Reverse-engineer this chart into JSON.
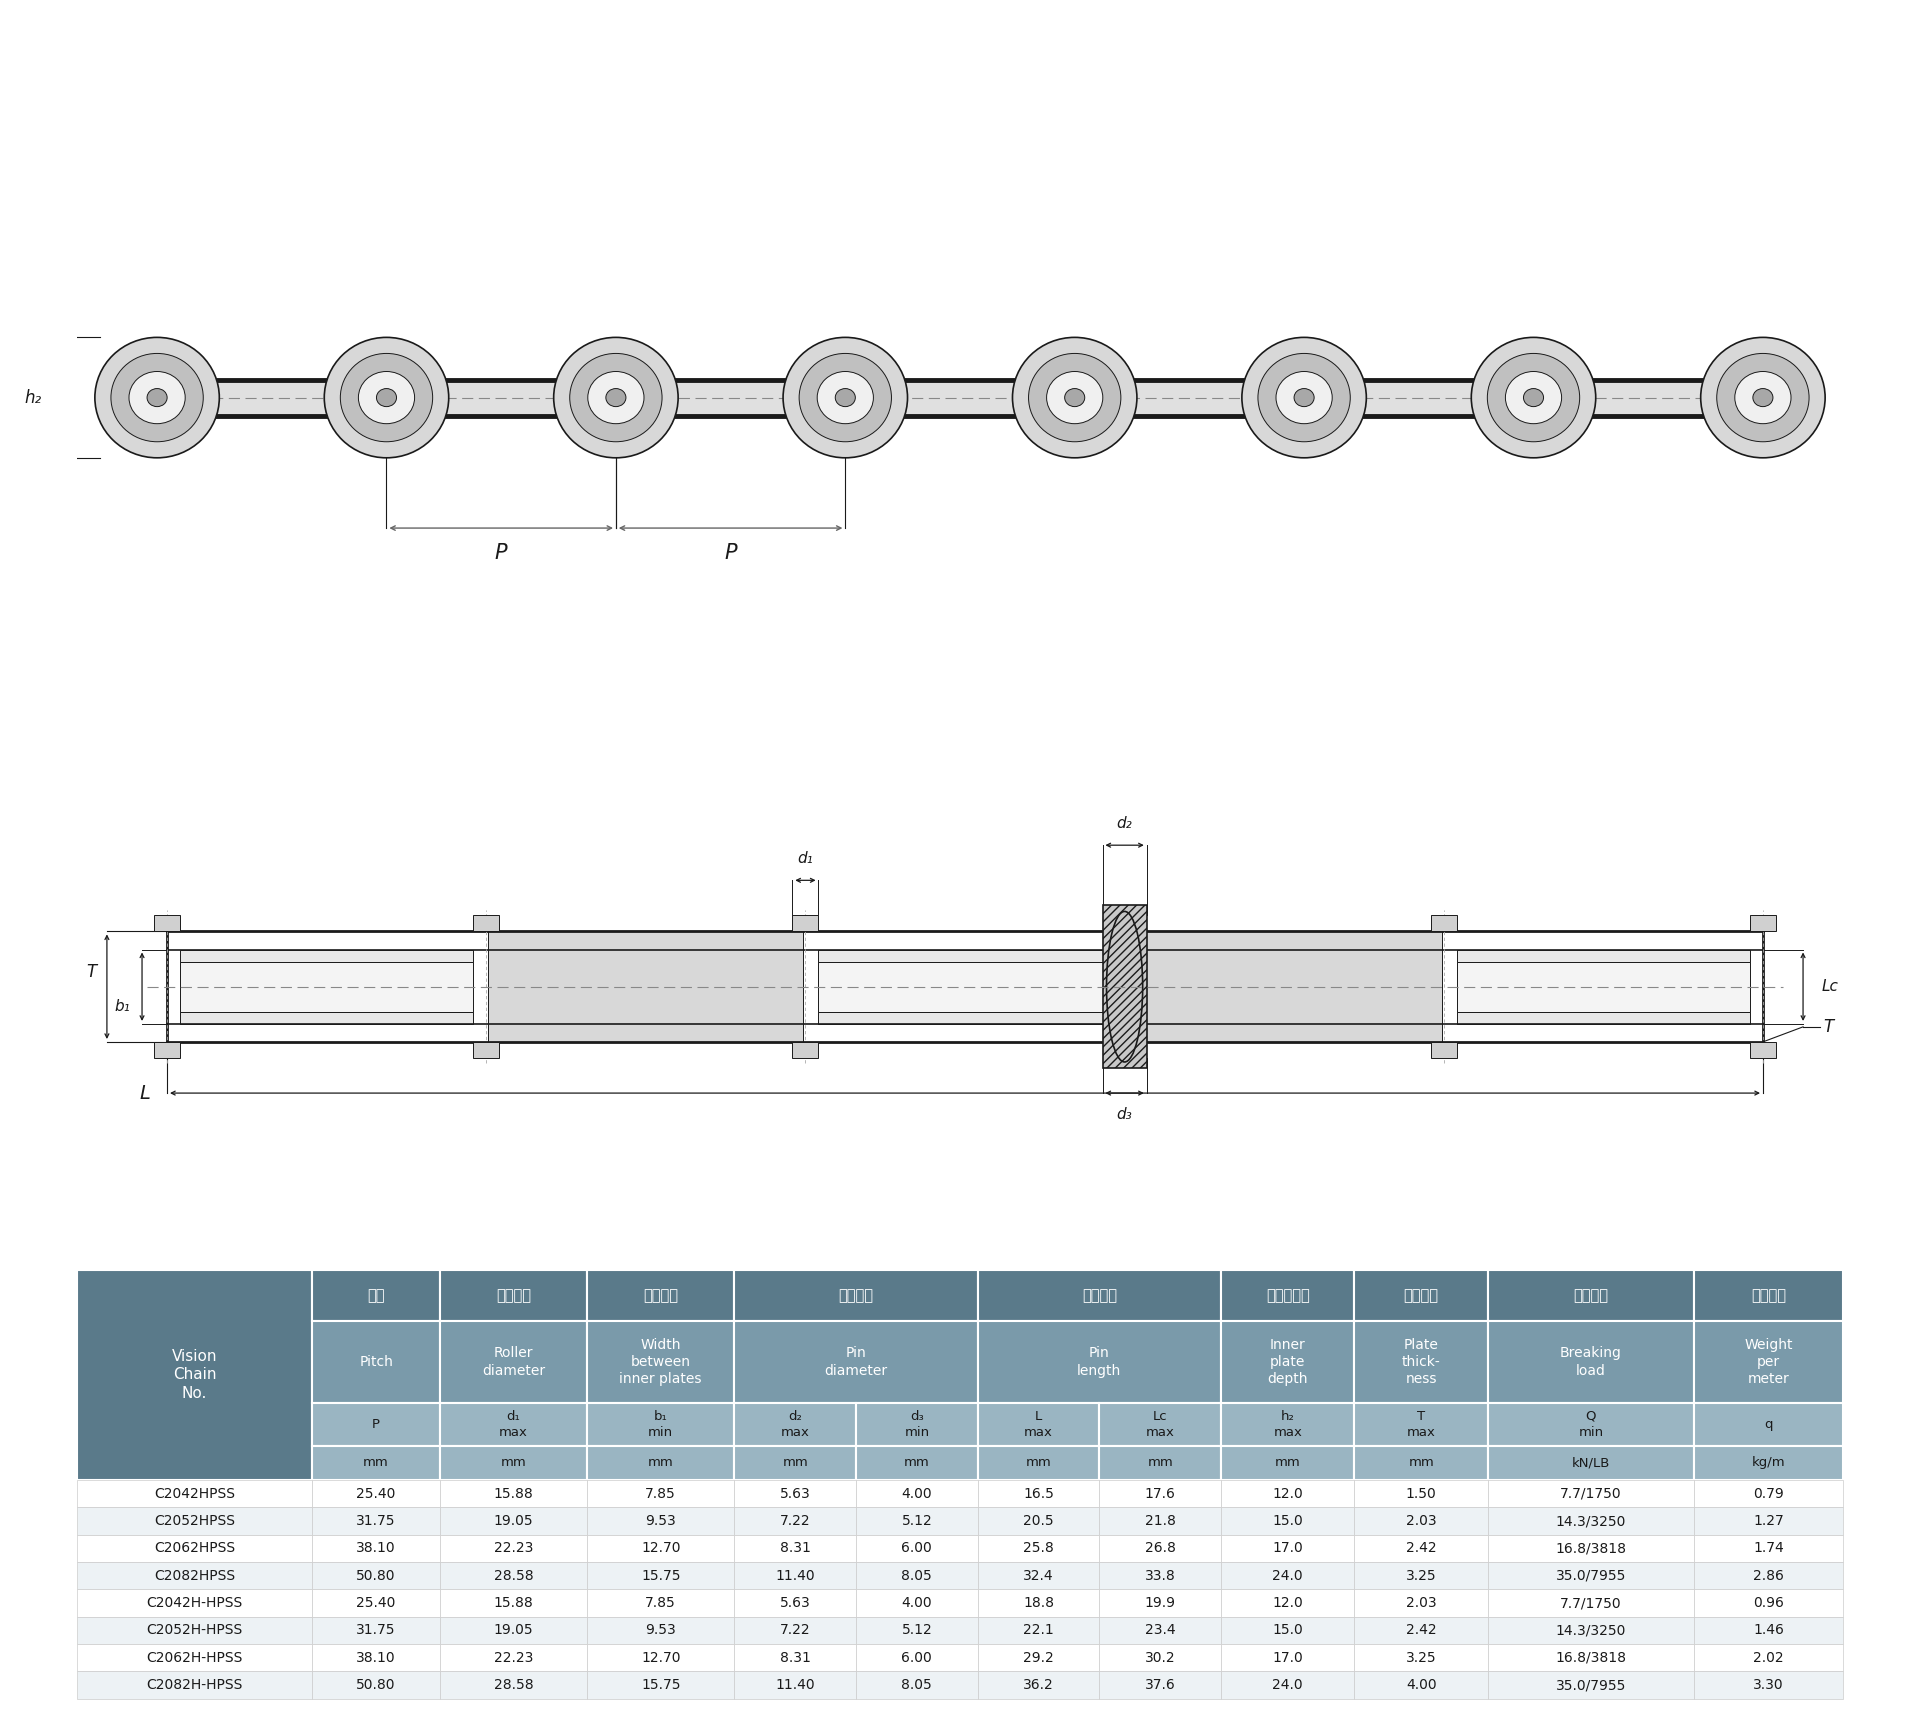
{
  "bg_color": "#ffffff",
  "table_header_bg": "#5a7a8a",
  "table_subheader_bg": "#7a9aaa",
  "table_sym_bg": "#9ab5c2",
  "table_unit_bg": "#9ab5c2",
  "table_row_bg_odd": "#ffffff",
  "table_row_bg_even": "#edf2f5",
  "table_text_white": "#ffffff",
  "table_text_dark": "#1a1a1a",
  "rows": [
    [
      "C2042HPSS",
      "25.40",
      "15.88",
      "7.85",
      "5.63",
      "4.00",
      "16.5",
      "17.6",
      "12.0",
      "1.50",
      "7.7/1750",
      "0.79"
    ],
    [
      "C2052HPSS",
      "31.75",
      "19.05",
      "9.53",
      "7.22",
      "5.12",
      "20.5",
      "21.8",
      "15.0",
      "2.03",
      "14.3/3250",
      "1.27"
    ],
    [
      "C2062HPSS",
      "38.10",
      "22.23",
      "12.70",
      "8.31",
      "6.00",
      "25.8",
      "26.8",
      "17.0",
      "2.42",
      "16.8/3818",
      "1.74"
    ],
    [
      "C2082HPSS",
      "50.80",
      "28.58",
      "15.75",
      "11.40",
      "8.05",
      "32.4",
      "33.8",
      "24.0",
      "3.25",
      "35.0/7955",
      "2.86"
    ],
    [
      "C2042H-HPSS",
      "25.40",
      "15.88",
      "7.85",
      "5.63",
      "4.00",
      "18.8",
      "19.9",
      "12.0",
      "2.03",
      "7.7/1750",
      "0.96"
    ],
    [
      "C2052H-HPSS",
      "31.75",
      "19.05",
      "9.53",
      "7.22",
      "5.12",
      "22.1",
      "23.4",
      "15.0",
      "2.42",
      "14.3/3250",
      "1.46"
    ],
    [
      "C2062H-HPSS",
      "38.10",
      "22.23",
      "12.70",
      "8.31",
      "6.00",
      "29.2",
      "30.2",
      "17.0",
      "3.25",
      "16.8/3818",
      "2.02"
    ],
    [
      "C2082H-HPSS",
      "50.80",
      "28.58",
      "15.75",
      "11.40",
      "8.05",
      "36.2",
      "37.6",
      "24.0",
      "4.00",
      "35.0/7955",
      "3.30"
    ]
  ],
  "draw_color": "#1a1a1a",
  "draw_gray1": "#d8d8d8",
  "draw_gray2": "#c0c0c0",
  "draw_gray3": "#a8a8a8",
  "draw_line_color": "#333333"
}
